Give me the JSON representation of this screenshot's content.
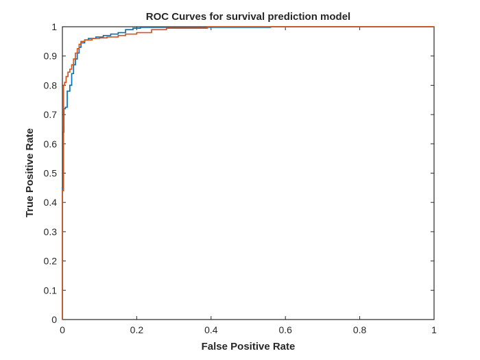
{
  "chart_data": {
    "type": "line",
    "title": "ROC Curves for survival prediction model",
    "xlabel": "False Positive Rate",
    "ylabel": "True Positive Rate",
    "xlim": [
      0,
      1
    ],
    "ylim": [
      0,
      1
    ],
    "xticks": [
      0,
      0.2,
      0.4,
      0.6,
      0.8,
      1
    ],
    "yticks": [
      0,
      0.1,
      0.2,
      0.3,
      0.4,
      0.5,
      0.6,
      0.7,
      0.8,
      0.9,
      1
    ],
    "x_tick_labels": [
      "0",
      "0.2",
      "0.4",
      "0.6",
      "0.8",
      "1"
    ],
    "y_tick_labels": [
      "0",
      "0.1",
      "0.2",
      "0.3",
      "0.4",
      "0.5",
      "0.6",
      "0.7",
      "0.8",
      "0.9",
      "1"
    ],
    "grid": false,
    "legend": "none",
    "series": [
      {
        "color": "#0072BD",
        "x": [
          0,
          0,
          0.002,
          0.002,
          0.004,
          0.004,
          0.008,
          0.008,
          0.013,
          0.013,
          0.02,
          0.02,
          0.025,
          0.025,
          0.03,
          0.03,
          0.035,
          0.035,
          0.04,
          0.04,
          0.045,
          0.045,
          0.05,
          0.05,
          0.06,
          0.06,
          0.07,
          0.07,
          0.09,
          0.09,
          0.11,
          0.11,
          0.13,
          0.13,
          0.15,
          0.15,
          0.17,
          0.17,
          0.19,
          0.19,
          0.21,
          0.21,
          0.25,
          0.25,
          0.56,
          0.56,
          1
        ],
        "y": [
          0,
          0.45,
          0.45,
          0.64,
          0.64,
          0.72,
          0.72,
          0.725,
          0.725,
          0.78,
          0.78,
          0.8,
          0.8,
          0.84,
          0.84,
          0.87,
          0.87,
          0.89,
          0.89,
          0.91,
          0.91,
          0.93,
          0.93,
          0.945,
          0.945,
          0.955,
          0.955,
          0.96,
          0.96,
          0.965,
          0.965,
          0.97,
          0.97,
          0.975,
          0.975,
          0.98,
          0.98,
          0.99,
          0.99,
          0.995,
          0.995,
          0.998,
          0.998,
          0.998,
          0.998,
          1.0,
          1.0
        ]
      },
      {
        "color": "#D95319",
        "x": [
          0,
          0,
          0.003,
          0.003,
          0.006,
          0.006,
          0.01,
          0.01,
          0.015,
          0.015,
          0.02,
          0.02,
          0.025,
          0.025,
          0.03,
          0.03,
          0.035,
          0.035,
          0.04,
          0.04,
          0.045,
          0.045,
          0.05,
          0.05,
          0.06,
          0.06,
          0.08,
          0.08,
          0.1,
          0.1,
          0.12,
          0.12,
          0.15,
          0.15,
          0.17,
          0.17,
          0.2,
          0.2,
          0.24,
          0.24,
          0.28,
          0.28,
          0.39,
          0.39,
          1
        ],
        "y": [
          0,
          0.44,
          0.44,
          0.8,
          0.8,
          0.81,
          0.81,
          0.83,
          0.83,
          0.845,
          0.845,
          0.855,
          0.855,
          0.87,
          0.87,
          0.89,
          0.89,
          0.91,
          0.91,
          0.925,
          0.925,
          0.94,
          0.94,
          0.95,
          0.95,
          0.955,
          0.955,
          0.96,
          0.96,
          0.962,
          0.962,
          0.965,
          0.965,
          0.97,
          0.97,
          0.975,
          0.975,
          0.98,
          0.98,
          0.99,
          0.99,
          0.995,
          0.995,
          1.0,
          1.0
        ]
      }
    ]
  }
}
